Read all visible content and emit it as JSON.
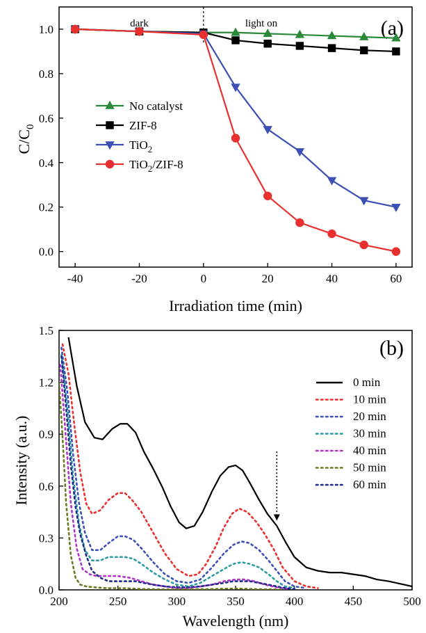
{
  "chart_data": [
    {
      "type": "line",
      "panel_label": "(a)",
      "xlabel": "Irradiation time (min)",
      "ylabel": "C/C0",
      "ylabel_main": "C/C",
      "ylabel_sub": "0",
      "xlim": [
        -45,
        65
      ],
      "ylim": [
        -0.07,
        1.1
      ],
      "xticks": [
        -40,
        -20,
        0,
        20,
        40,
        60
      ],
      "xtick_labels": [
        "-40",
        "-20",
        "0",
        "20",
        "40",
        "60"
      ],
      "yticks": [
        0.0,
        0.2,
        0.4,
        0.6,
        0.8,
        1.0
      ],
      "ytick_labels": [
        "0.0",
        "0.2",
        "0.4",
        "0.6",
        "0.8",
        "1.0"
      ],
      "annotations": [
        {
          "text": "dark",
          "x": -20
        },
        {
          "text": "light on",
          "x": 18
        }
      ],
      "divider_x": 0,
      "legend_position": "center-left",
      "series": [
        {
          "name": "No catalyst",
          "label_main": "No catalyst",
          "label_sub": "",
          "label_tail": "",
          "color": "#2a8a3a",
          "marker": "triangle-up",
          "x": [
            -40,
            -20,
            0,
            10,
            20,
            30,
            40,
            50,
            60
          ],
          "y": [
            1.0,
            0.99,
            0.985,
            0.985,
            0.98,
            0.975,
            0.97,
            0.965,
            0.96
          ]
        },
        {
          "name": "ZIF-8",
          "label_main": "ZIF-8",
          "label_sub": "",
          "label_tail": "",
          "color": "#000000",
          "marker": "square",
          "x": [
            -40,
            -20,
            0,
            10,
            20,
            30,
            40,
            50,
            60
          ],
          "y": [
            1.0,
            0.99,
            0.985,
            0.95,
            0.935,
            0.925,
            0.915,
            0.905,
            0.9
          ]
        },
        {
          "name": "TiO2",
          "label_main": "TiO",
          "label_sub": "2",
          "label_tail": "",
          "color": "#3c4fb5",
          "marker": "triangle-down",
          "x": [
            -40,
            -20,
            0,
            10,
            20,
            30,
            40,
            50,
            60
          ],
          "y": [
            1.0,
            0.99,
            0.98,
            0.74,
            0.55,
            0.45,
            0.32,
            0.23,
            0.2
          ]
        },
        {
          "name": "TiO2/ZIF-8",
          "label_main": "TiO",
          "label_sub": "2",
          "label_tail": "/ZIF-8",
          "color": "#e8302e",
          "marker": "circle",
          "x": [
            -40,
            -20,
            0,
            10,
            20,
            30,
            40,
            50,
            60
          ],
          "y": [
            1.0,
            0.99,
            0.975,
            0.51,
            0.25,
            0.13,
            0.08,
            0.03,
            0.0
          ]
        }
      ]
    },
    {
      "type": "line",
      "panel_label": "(b)",
      "xlabel": "Wavelength (nm)",
      "ylabel": "Intensity (a.u.)",
      "xlim": [
        200,
        500
      ],
      "ylim": [
        0,
        1.5
      ],
      "xticks": [
        200,
        250,
        300,
        350,
        400,
        450,
        500
      ],
      "xtick_labels": [
        "200",
        "250",
        "300",
        "350",
        "400",
        "450",
        "500"
      ],
      "yticks": [
        0.0,
        0.3,
        0.6,
        0.9,
        1.2,
        1.5
      ],
      "ytick_labels": [
        "0.0",
        "0.3",
        "0.6",
        "0.9",
        "1.2",
        "1.5"
      ],
      "arrow": {
        "x": 385,
        "y_from": 0.8,
        "y_to": 0.4
      },
      "legend_position": "right",
      "series": [
        {
          "name": "0 min",
          "color": "#000000",
          "style": "solid",
          "x": [
            208,
            215,
            222,
            230,
            237,
            245,
            252,
            258,
            265,
            272,
            280,
            288,
            295,
            302,
            308,
            315,
            322,
            330,
            337,
            344,
            350,
            356,
            362,
            370,
            377,
            385,
            393,
            400,
            410,
            420,
            430,
            440,
            450,
            460,
            470,
            480,
            490,
            500
          ],
          "y": [
            1.46,
            1.18,
            0.97,
            0.88,
            0.87,
            0.93,
            0.96,
            0.96,
            0.91,
            0.8,
            0.7,
            0.59,
            0.48,
            0.39,
            0.355,
            0.37,
            0.45,
            0.57,
            0.66,
            0.71,
            0.72,
            0.69,
            0.62,
            0.52,
            0.44,
            0.37,
            0.27,
            0.19,
            0.13,
            0.11,
            0.1,
            0.1,
            0.09,
            0.08,
            0.06,
            0.05,
            0.035,
            0.02
          ]
        },
        {
          "name": "10 min",
          "color": "#e8302e",
          "style": "dotted",
          "x": [
            203,
            208,
            213,
            218,
            223,
            228,
            235,
            242,
            250,
            256,
            262,
            270,
            280,
            290,
            300,
            310,
            318,
            325,
            333,
            340,
            347,
            353,
            360,
            368,
            375,
            382,
            390,
            400,
            410,
            420
          ],
          "y": [
            1.42,
            1.25,
            0.95,
            0.68,
            0.5,
            0.44,
            0.46,
            0.52,
            0.56,
            0.56,
            0.52,
            0.45,
            0.33,
            0.21,
            0.12,
            0.08,
            0.09,
            0.15,
            0.25,
            0.36,
            0.44,
            0.47,
            0.45,
            0.39,
            0.32,
            0.24,
            0.13,
            0.05,
            0.02,
            0.01
          ]
        },
        {
          "name": "20 min",
          "color": "#3c4fb5",
          "style": "dotted",
          "x": [
            202,
            207,
            212,
            217,
            222,
            228,
            235,
            242,
            250,
            256,
            263,
            270,
            280,
            290,
            300,
            310,
            320,
            330,
            340,
            348,
            355,
            362,
            370,
            378,
            385,
            392,
            400,
            410
          ],
          "y": [
            1.4,
            1.15,
            0.78,
            0.5,
            0.33,
            0.23,
            0.23,
            0.27,
            0.31,
            0.31,
            0.29,
            0.24,
            0.16,
            0.09,
            0.05,
            0.04,
            0.06,
            0.13,
            0.21,
            0.26,
            0.28,
            0.27,
            0.23,
            0.17,
            0.11,
            0.05,
            0.02,
            0.01
          ]
        },
        {
          "name": "30 min",
          "color": "#2a9aa3",
          "style": "dotted",
          "x": [
            202,
            207,
            212,
            217,
            222,
            228,
            235,
            242,
            250,
            256,
            263,
            270,
            280,
            290,
            300,
            310,
            320,
            330,
            340,
            348,
            355,
            362,
            370,
            378,
            385,
            392,
            400
          ],
          "y": [
            1.36,
            1.05,
            0.65,
            0.38,
            0.23,
            0.17,
            0.17,
            0.19,
            0.19,
            0.19,
            0.18,
            0.15,
            0.1,
            0.06,
            0.03,
            0.02,
            0.04,
            0.08,
            0.12,
            0.15,
            0.16,
            0.15,
            0.13,
            0.09,
            0.05,
            0.02,
            0.01
          ]
        },
        {
          "name": "40 min",
          "color": "#b033c8",
          "style": "dotted",
          "x": [
            201,
            205,
            210,
            215,
            220,
            226,
            232,
            240,
            250,
            260,
            270,
            280,
            290,
            300,
            310,
            320,
            330,
            340,
            350,
            358,
            366,
            375,
            385,
            395
          ],
          "y": [
            1.3,
            0.95,
            0.5,
            0.24,
            0.12,
            0.09,
            0.08,
            0.08,
            0.08,
            0.07,
            0.05,
            0.03,
            0.02,
            0.01,
            0.01,
            0.02,
            0.03,
            0.05,
            0.06,
            0.06,
            0.05,
            0.03,
            0.015,
            0.005
          ]
        },
        {
          "name": "50 min",
          "color": "#6e7a22",
          "style": "dotted",
          "x": [
            200,
            203,
            206,
            210,
            214,
            218,
            223,
            230,
            240,
            255,
            270,
            290,
            310,
            330,
            350,
            370,
            390
          ],
          "y": [
            1.2,
            0.88,
            0.5,
            0.2,
            0.07,
            0.03,
            0.02,
            0.015,
            0.01,
            0.01,
            0.005,
            0.003,
            0.003,
            0.005,
            0.008,
            0.004,
            0.002
          ]
        },
        {
          "name": "60 min",
          "color": "#1f2a88",
          "style": "dotted",
          "x": [
            202,
            206,
            210,
            214,
            218,
            223,
            228,
            235,
            242,
            250,
            258,
            265,
            272,
            280,
            290,
            300,
            310,
            320,
            330,
            340,
            348,
            355,
            362,
            370,
            378,
            385,
            392,
            400
          ],
          "y": [
            1.35,
            1.05,
            0.72,
            0.48,
            0.32,
            0.2,
            0.11,
            0.07,
            0.05,
            0.05,
            0.05,
            0.05,
            0.04,
            0.03,
            0.02,
            0.015,
            0.015,
            0.02,
            0.03,
            0.04,
            0.05,
            0.05,
            0.05,
            0.04,
            0.03,
            0.02,
            0.01,
            0.005
          ]
        }
      ]
    }
  ]
}
